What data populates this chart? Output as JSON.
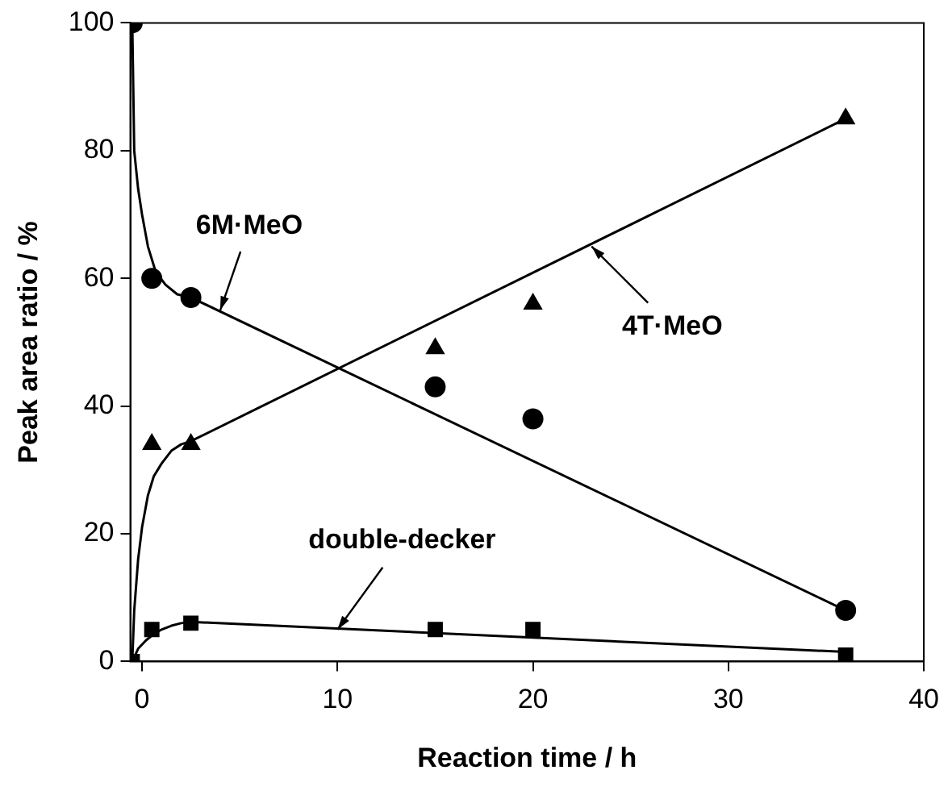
{
  "chart_data": {
    "type": "scatter",
    "xlabel": "Reaction time / h",
    "ylabel": "Peak area ratio / %",
    "xlim": [
      -0.6,
      40
    ],
    "ylim": [
      0,
      100
    ],
    "xticks": [
      0,
      10,
      20,
      30,
      40
    ],
    "yticks": [
      0,
      20,
      40,
      60,
      80,
      100
    ],
    "grid": false,
    "legend": false,
    "series": [
      {
        "type": "line",
        "marker": "none",
        "color": "#000000",
        "x": [
          -0.5,
          -0.45,
          -0.4,
          -0.2,
          0,
          0.3,
          0.7,
          1.2,
          1.8,
          2.5,
          36
        ],
        "values": [
          100,
          90,
          80,
          74,
          70,
          65,
          61,
          59,
          57.5,
          57,
          8
        ]
      },
      {
        "type": "line",
        "marker": "none",
        "color": "#000000",
        "x": [
          -0.5,
          -0.4,
          -0.2,
          0,
          0.3,
          0.6,
          1,
          1.5,
          2,
          2.5,
          36
        ],
        "values": [
          0,
          8,
          16,
          21,
          26,
          29,
          31,
          33,
          34,
          34.5,
          85
        ]
      },
      {
        "type": "line",
        "marker": "none",
        "color": "#000000",
        "x": [
          -0.5,
          -0.2,
          0.2,
          0.6,
          1,
          1.5,
          2,
          2.5,
          36
        ],
        "values": [
          0,
          2,
          3.3,
          4.3,
          5,
          5.6,
          6,
          6.2,
          1.5
        ]
      },
      {
        "marker": "circle",
        "color": "#000000",
        "x": [
          -0.5,
          0.5,
          2.5,
          15,
          20,
          36
        ],
        "values": [
          100,
          60,
          57,
          43,
          38,
          8
        ]
      },
      {
        "marker": "triangle",
        "color": "#000000",
        "x": [
          0.5,
          2.5,
          15,
          20,
          36
        ],
        "values": [
          34,
          34,
          49,
          56,
          85
        ]
      },
      {
        "marker": "square",
        "color": "#000000",
        "x": [
          -0.5,
          0.5,
          2.5,
          15,
          20,
          36
        ],
        "values": [
          0,
          5,
          6,
          5,
          5,
          1
        ]
      }
    ],
    "annotations": [
      {
        "text": "6M·MeO",
        "x": 4,
        "y": 55
      },
      {
        "text": "4T·MeO",
        "x": 23,
        "y": 65
      },
      {
        "text": "double-decker",
        "x": 10,
        "y": 5
      }
    ]
  }
}
